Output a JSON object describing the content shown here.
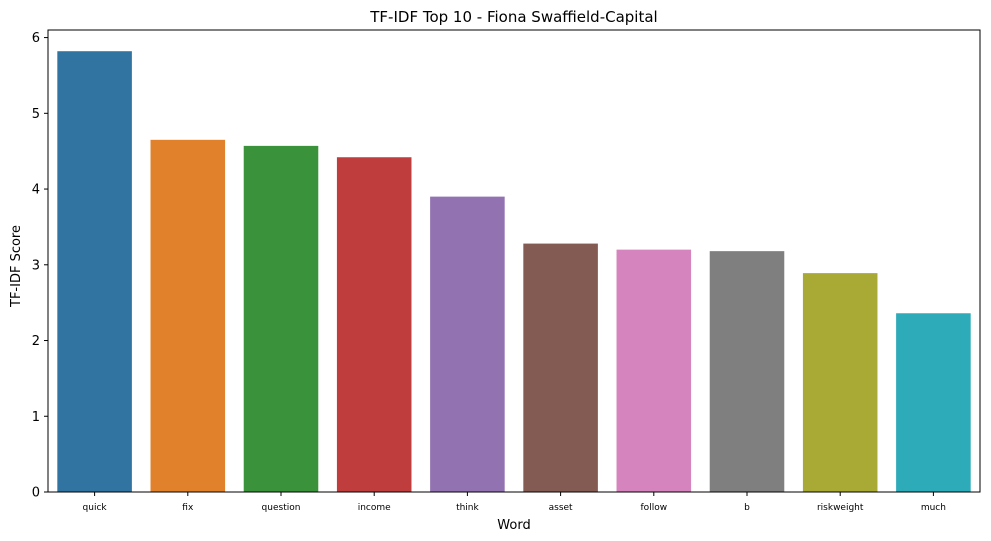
{
  "chart_data": {
    "type": "bar",
    "title": "TF-IDF Top 10 - Fiona Swaffield-Capital",
    "xlabel": "Word",
    "ylabel": "TF-IDF Score",
    "categories": [
      "quick",
      "fix",
      "question",
      "income",
      "think",
      "asset",
      "follow",
      "b",
      "riskweight",
      "much"
    ],
    "values": [
      5.82,
      4.65,
      4.57,
      4.42,
      3.9,
      3.28,
      3.2,
      3.18,
      2.89,
      2.36
    ],
    "colors": [
      "#3274a1",
      "#e1812c",
      "#3a923a",
      "#c03d3e",
      "#9372b2",
      "#845b53",
      "#d684bd",
      "#7f7f7f",
      "#a9aa35",
      "#2eabb8"
    ],
    "ylim": [
      0,
      6.1
    ],
    "yticks": [
      "0",
      "1",
      "2",
      "3",
      "4",
      "5",
      "6"
    ],
    "grid": false,
    "legend": "none"
  }
}
